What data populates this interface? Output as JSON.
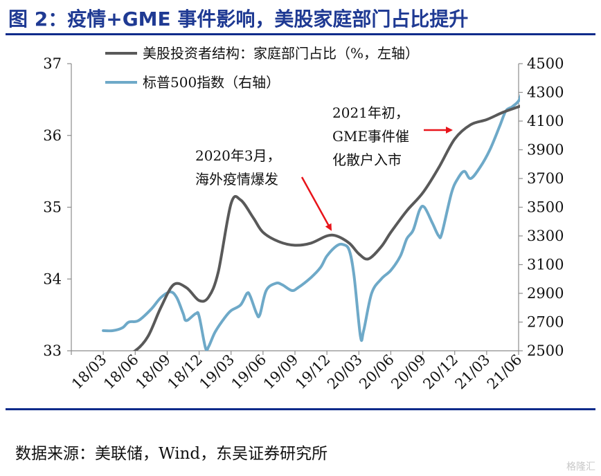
{
  "title": "图 2：疫情+GME 事件影响，美股家庭部门占比提升",
  "source": "数据来源：美联储，Wind，东吴证券研究所",
  "watermark": "格隆汇",
  "colors": {
    "title": "#1f3a93",
    "household": "#595959",
    "sp500": "#6ea9c8",
    "arrow": "#e8141a"
  },
  "chart_data": {
    "type": "line",
    "x_tick_labels": [
      "18/03",
      "18/06",
      "18/09",
      "18/12",
      "19/03",
      "19/06",
      "19/09",
      "19/12",
      "20/03",
      "20/06",
      "20/09",
      "20/12",
      "21/03",
      "21/06"
    ],
    "left_axis": {
      "ylim": [
        33,
        37
      ],
      "ticks": [
        "33",
        "34",
        "35",
        "36",
        "37"
      ]
    },
    "right_axis": {
      "ylim": [
        2500,
        4500
      ],
      "ticks": [
        "2500",
        "2700",
        "2900",
        "3100",
        "3300",
        "3500",
        "3700",
        "3900",
        "4100",
        "4300",
        "4500"
      ]
    },
    "series": [
      {
        "name": "美股投资者结构：家庭部门占比（%，左轴）",
        "axis": "left",
        "points": [
          [
            0,
            32.95
          ],
          [
            0.7,
            32.97
          ],
          [
            1,
            33.0
          ],
          [
            1.4,
            33.2
          ],
          [
            1.8,
            33.6
          ],
          [
            2.2,
            33.92
          ],
          [
            2.6,
            33.88
          ],
          [
            3,
            33.7
          ],
          [
            3.3,
            33.75
          ],
          [
            3.6,
            34.1
          ],
          [
            4,
            35.05
          ],
          [
            4.3,
            35.1
          ],
          [
            4.7,
            34.85
          ],
          [
            5,
            34.65
          ],
          [
            5.5,
            34.52
          ],
          [
            6,
            34.47
          ],
          [
            6.5,
            34.5
          ],
          [
            7,
            34.6
          ],
          [
            7.3,
            34.6
          ],
          [
            7.7,
            34.5
          ],
          [
            8,
            34.35
          ],
          [
            8.3,
            34.28
          ],
          [
            8.7,
            34.45
          ],
          [
            9,
            34.65
          ],
          [
            9.5,
            34.95
          ],
          [
            10,
            35.2
          ],
          [
            10.5,
            35.55
          ],
          [
            11,
            35.95
          ],
          [
            11.5,
            36.15
          ],
          [
            12,
            36.22
          ],
          [
            12.5,
            36.32
          ],
          [
            13,
            36.4
          ],
          [
            13.1,
            36.42
          ]
        ]
      },
      {
        "name": "标普500指数（右轴）",
        "axis": "right",
        "points": [
          [
            0,
            2640
          ],
          [
            0.3,
            2640
          ],
          [
            0.6,
            2660
          ],
          [
            0.8,
            2700
          ],
          [
            1.1,
            2710
          ],
          [
            1.5,
            2790
          ],
          [
            1.8,
            2870
          ],
          [
            2.1,
            2910
          ],
          [
            2.3,
            2870
          ],
          [
            2.5,
            2760
          ],
          [
            2.6,
            2710
          ],
          [
            2.9,
            2760
          ],
          [
            3,
            2740
          ],
          [
            3.2,
            2520
          ],
          [
            3.3,
            2530
          ],
          [
            3.5,
            2630
          ],
          [
            3.8,
            2730
          ],
          [
            4,
            2780
          ],
          [
            4.3,
            2820
          ],
          [
            4.5,
            2900
          ],
          [
            4.6,
            2880
          ],
          [
            4.8,
            2760
          ],
          [
            4.9,
            2750
          ],
          [
            5.1,
            2920
          ],
          [
            5.4,
            2970
          ],
          [
            5.6,
            2960
          ],
          [
            5.9,
            2920
          ],
          [
            6.1,
            2940
          ],
          [
            6.5,
            3010
          ],
          [
            6.8,
            3080
          ],
          [
            7,
            3160
          ],
          [
            7.3,
            3230
          ],
          [
            7.5,
            3240
          ],
          [
            7.7,
            3200
          ],
          [
            7.85,
            3020
          ],
          [
            8.05,
            2600
          ],
          [
            8.15,
            2640
          ],
          [
            8.4,
            2900
          ],
          [
            8.7,
            3000
          ],
          [
            9,
            3060
          ],
          [
            9.3,
            3160
          ],
          [
            9.5,
            3280
          ],
          [
            9.7,
            3340
          ],
          [
            9.9,
            3480
          ],
          [
            10.05,
            3500
          ],
          [
            10.3,
            3390
          ],
          [
            10.5,
            3300
          ],
          [
            10.6,
            3320
          ],
          [
            10.9,
            3600
          ],
          [
            11.1,
            3700
          ],
          [
            11.3,
            3750
          ],
          [
            11.5,
            3700
          ],
          [
            11.8,
            3780
          ],
          [
            12.1,
            3900
          ],
          [
            12.4,
            4060
          ],
          [
            12.6,
            4170
          ],
          [
            12.8,
            4200
          ],
          [
            13,
            4240
          ],
          [
            13.1,
            4300
          ]
        ]
      }
    ],
    "annotations": [
      {
        "lines": [
          "2020年3月，",
          "海外疫情爆发"
        ]
      },
      {
        "lines": [
          "2021年初，",
          "GME事件催",
          "化散户入市"
        ]
      }
    ]
  }
}
